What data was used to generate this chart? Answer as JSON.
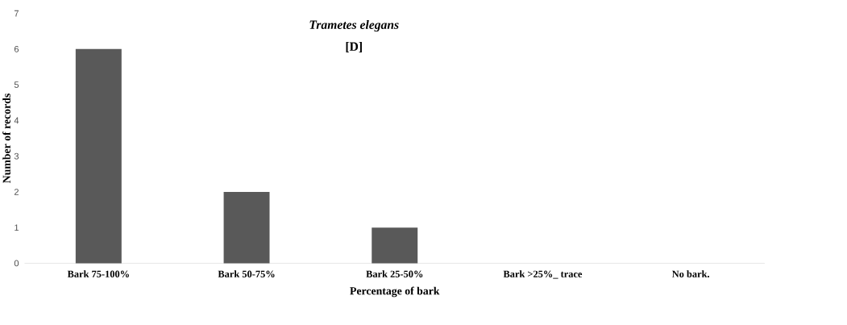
{
  "chart_data": {
    "type": "bar",
    "title": "Trametes elegans",
    "subtitle": "[D]",
    "xlabel": "Percentage of bark",
    "ylabel": "Number of records",
    "categories": [
      "Bark 75-100%",
      "Bark 50-75%",
      "Bark 25-50%",
      "Bark >25%_ trace",
      "No bark."
    ],
    "values": [
      6,
      2,
      1,
      0,
      0
    ],
    "color": "#595959",
    "ylim": [
      0,
      7
    ],
    "yticks": [
      0,
      1,
      2,
      3,
      4,
      5,
      6,
      7
    ]
  }
}
